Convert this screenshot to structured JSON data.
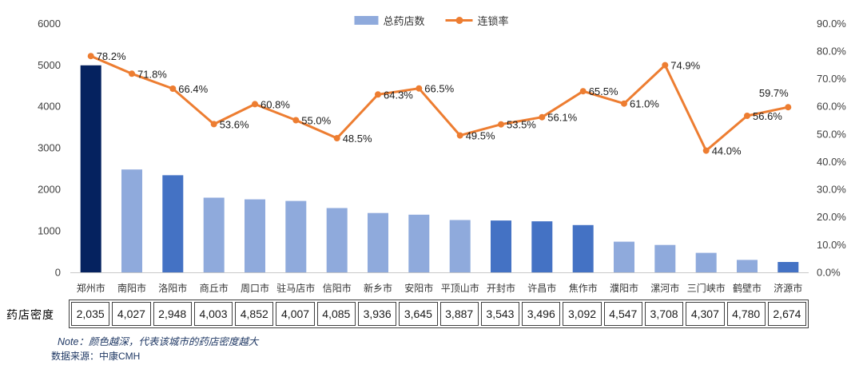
{
  "legend": {
    "bar_label": "总药店数",
    "line_label": "连锁率",
    "bar_color": "#8FAADC",
    "line_color": "#ED7D31"
  },
  "chart_data": {
    "type": "bar+line combo",
    "title": "",
    "categories": [
      "郑州市",
      "南阳市",
      "洛阳市",
      "商丘市",
      "周口市",
      "驻马店市",
      "信阳市",
      "新乡市",
      "安阳市",
      "平顶山市",
      "开封市",
      "许昌市",
      "焦作市",
      "濮阳市",
      "漯河市",
      "三门峡市",
      "鹤壁市",
      "济源市"
    ],
    "series": [
      {
        "name": "总药店数",
        "type": "bar",
        "axis": "left",
        "values": [
          4990,
          2480,
          2340,
          1800,
          1760,
          1720,
          1550,
          1430,
          1390,
          1260,
          1250,
          1230,
          1140,
          740,
          660,
          470,
          300,
          250
        ],
        "bar_colors": [
          "#05225F",
          "#8FAADC",
          "#4472C4",
          "#8FAADC",
          "#8FAADC",
          "#8FAADC",
          "#8FAADC",
          "#8FAADC",
          "#8FAADC",
          "#8FAADC",
          "#4472C4",
          "#4472C4",
          "#4472C4",
          "#8FAADC",
          "#8FAADC",
          "#8FAADC",
          "#8FAADC",
          "#4472C4"
        ]
      },
      {
        "name": "连锁率",
        "type": "line",
        "axis": "right",
        "color": "#ED7D31",
        "values": [
          78.2,
          71.8,
          66.4,
          53.6,
          60.8,
          55.0,
          48.5,
          64.3,
          66.5,
          49.5,
          53.5,
          56.1,
          65.5,
          61.0,
          74.9,
          44.0,
          56.6,
          59.7
        ],
        "labels": [
          "78.2%",
          "71.8%",
          "66.4%",
          "53.6%",
          "60.8%",
          "55.0%",
          "48.5%",
          "64.3%",
          "66.5%",
          "49.5%",
          "53.5%",
          "56.1%",
          "65.5%",
          "61.0%",
          "74.9%",
          "44.0%",
          "56.6%",
          "59.7%"
        ]
      }
    ],
    "left_axis": {
      "min": 0,
      "max": 6000,
      "step": 1000,
      "ticks": [
        "6000",
        "5000",
        "4000",
        "3000",
        "2000",
        "1000",
        "0"
      ]
    },
    "right_axis": {
      "min": 0,
      "max": 90,
      "step": 10,
      "ticks": [
        "90.0%",
        "80.0%",
        "70.0%",
        "60.0%",
        "50.0%",
        "40.0%",
        "30.0%",
        "20.0%",
        "10.0%",
        "0.0%"
      ]
    },
    "grid": false,
    "legend_position": "top-center"
  },
  "table": {
    "row_label": "药店密度",
    "values": [
      "2,035",
      "4,027",
      "2,948",
      "4,003",
      "4,852",
      "4,007",
      "4,085",
      "3,936",
      "3,645",
      "3,887",
      "3,543",
      "3,496",
      "3,092",
      "4,547",
      "3,708",
      "4,307",
      "4,780",
      "2,674"
    ]
  },
  "notes": {
    "note": "Note：颜色越深，代表该城市的药店密度越大",
    "source": "数据来源：中康CMH"
  },
  "colors": {
    "bar_dark": "#05225F",
    "bar_medium": "#4472C4",
    "bar_light": "#8FAADC",
    "line_orange": "#ED7D31",
    "axis_text": "#404040",
    "note_text": "#1F3864"
  }
}
